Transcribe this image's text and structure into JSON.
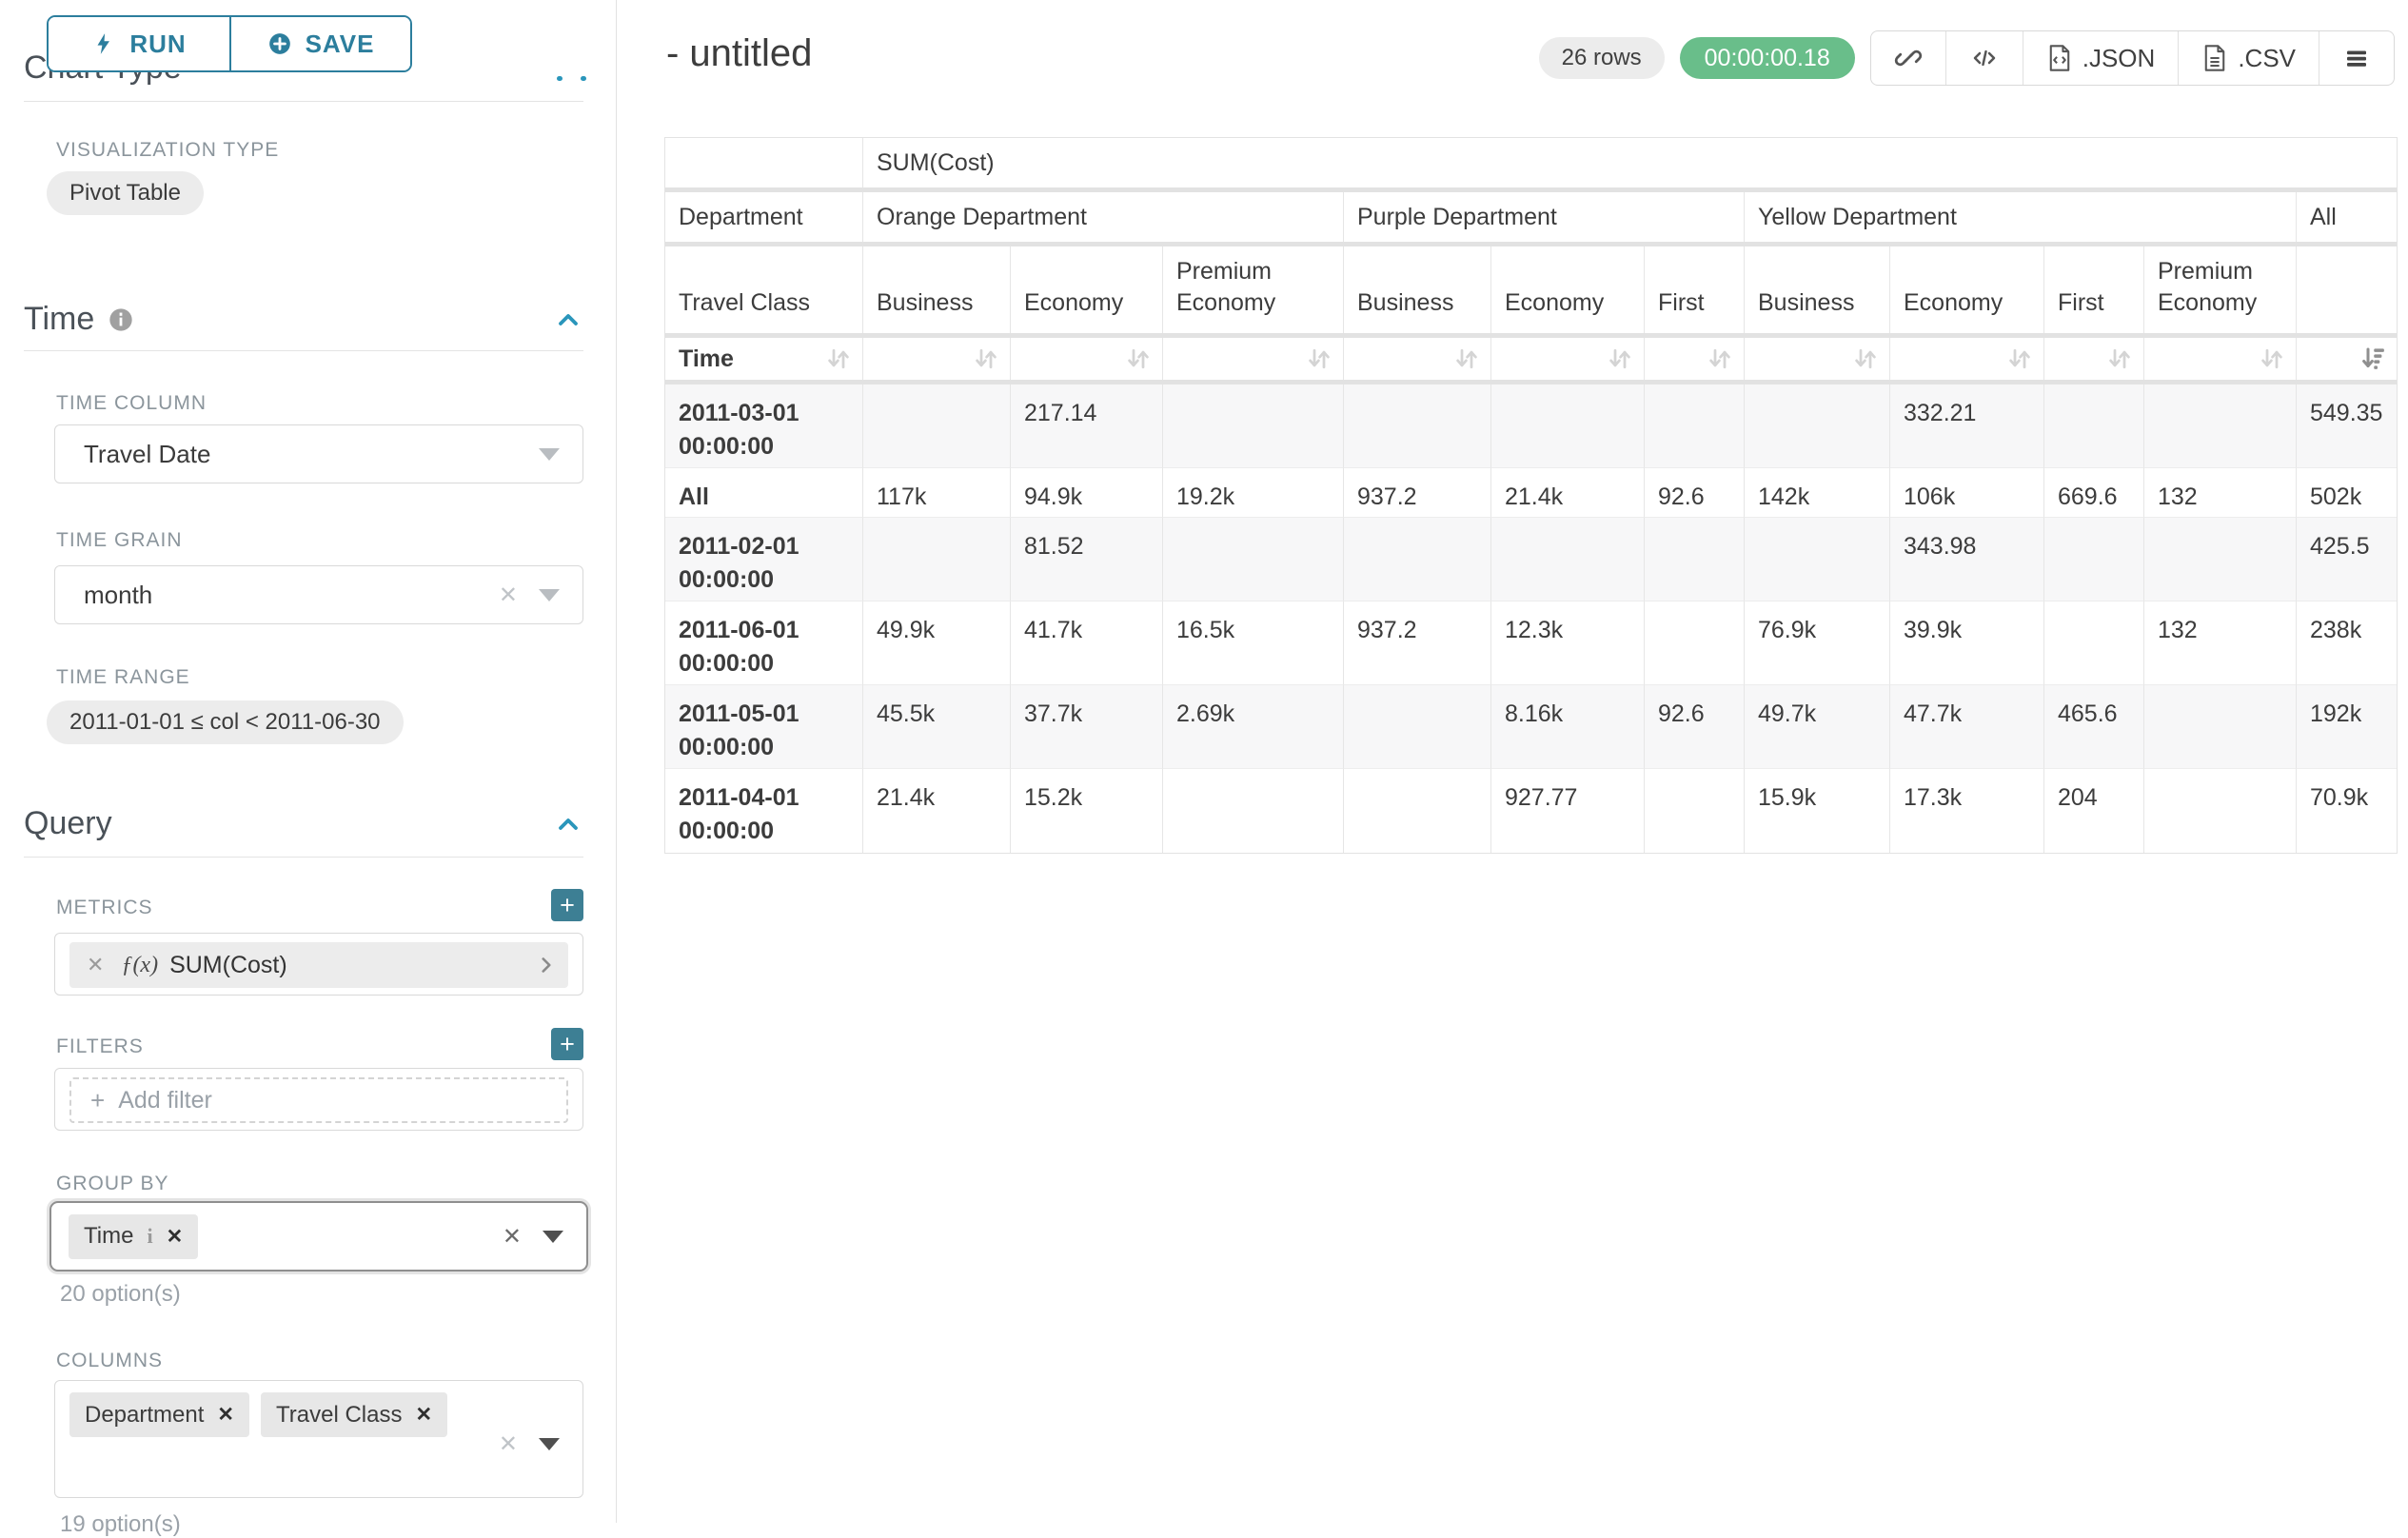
{
  "colors": {
    "accent_teal": "#2c7e9d",
    "chevron_blue": "#2a96bb",
    "plus_button_teal": "#3d7f94",
    "timer_green": "#69be8a"
  },
  "left_panel": {
    "run_label": "RUN",
    "save_label": "SAVE",
    "chart_type_heading": "Chart Type",
    "viz_type_label": "VISUALIZATION TYPE",
    "viz_type_value": "Pivot Table",
    "time_section": {
      "title": "Time",
      "time_column_label": "TIME COLUMN",
      "time_column_value": "Travel Date",
      "time_grain_label": "TIME GRAIN",
      "time_grain_value": "month",
      "time_range_label": "TIME RANGE",
      "time_range_value": "2011-01-01 ≤ col < 2011-06-30"
    },
    "query_section": {
      "title": "Query",
      "metrics_label": "METRICS",
      "metric_fx": "ƒ(x)",
      "metric_value": "SUM(Cost)",
      "filters_label": "FILTERS",
      "add_filter_label": "Add filter",
      "group_by_label": "GROUP BY",
      "group_by_chips": [
        {
          "label": "Time",
          "has_info": true
        }
      ],
      "group_by_options_note": "20 option(s)",
      "columns_label": "COLUMNS",
      "columns_chips": [
        {
          "label": "Department",
          "has_info": false
        },
        {
          "label": "Travel Class",
          "has_info": false
        }
      ],
      "columns_options_note": "19 option(s)"
    }
  },
  "header": {
    "title": "- untitled",
    "rows_badge": "26 rows",
    "timer": "00:00:00.18",
    "toolbar": [
      {
        "icon": "link-icon",
        "label": ""
      },
      {
        "icon": "code-icon",
        "label": ""
      },
      {
        "icon": "file-json-icon",
        "label": ".JSON"
      },
      {
        "icon": "file-csv-icon",
        "label": ".CSV"
      },
      {
        "icon": "menu-icon",
        "label": ""
      }
    ]
  },
  "pivot_table": {
    "metric_header": "SUM(Cost)",
    "department_row_label": "Department",
    "department_groups": [
      {
        "label": "Orange Department",
        "span": 3
      },
      {
        "label": "Purple Department",
        "span": 3
      },
      {
        "label": "Yellow Department",
        "span": 4
      },
      {
        "label": "All",
        "span": 1
      }
    ],
    "travel_class_row_label": "Travel Class",
    "travel_classes": [
      "Business",
      "Economy",
      "Premium Economy",
      "Business",
      "Economy",
      "First",
      "Business",
      "Economy",
      "First",
      "Premium Economy",
      ""
    ],
    "sort_row_label": "Time",
    "sorted_descending_column": 11,
    "rows": [
      {
        "label": "2011-03-01 00:00:00",
        "values": [
          "",
          "217.14",
          "",
          "",
          "",
          "",
          "",
          "332.21",
          "",
          "",
          "549.35"
        ]
      },
      {
        "label": "All",
        "values": [
          "117k",
          "94.9k",
          "19.2k",
          "937.2",
          "21.4k",
          "92.6",
          "142k",
          "106k",
          "669.6",
          "132",
          "502k"
        ]
      },
      {
        "label": "2011-02-01 00:00:00",
        "values": [
          "",
          "81.52",
          "",
          "",
          "",
          "",
          "",
          "343.98",
          "",
          "",
          "425.5"
        ]
      },
      {
        "label": "2011-06-01 00:00:00",
        "values": [
          "49.9k",
          "41.7k",
          "16.5k",
          "937.2",
          "12.3k",
          "",
          "76.9k",
          "39.9k",
          "",
          "132",
          "238k"
        ]
      },
      {
        "label": "2011-05-01 00:00:00",
        "values": [
          "45.5k",
          "37.7k",
          "2.69k",
          "",
          "8.16k",
          "92.6",
          "49.7k",
          "47.7k",
          "465.6",
          "",
          "192k"
        ]
      },
      {
        "label": "2011-04-01 00:00:00",
        "values": [
          "21.4k",
          "15.2k",
          "",
          "",
          "927.77",
          "",
          "15.9k",
          "17.3k",
          "204",
          "",
          "70.9k"
        ]
      }
    ]
  }
}
